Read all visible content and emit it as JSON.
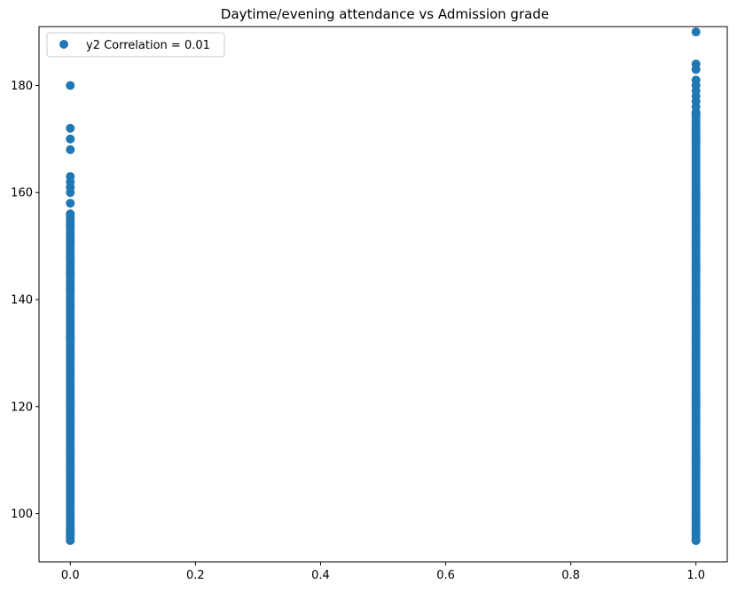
{
  "chart_data": {
    "type": "scatter",
    "title": "Daytime/evening attendance\t vs Admission grade",
    "xlabel": "",
    "ylabel": "",
    "xlim": [
      -0.05,
      1.05
    ],
    "ylim": [
      91,
      191
    ],
    "x_ticks": [
      0.0,
      0.2,
      0.4,
      0.6,
      0.8,
      1.0
    ],
    "x_tick_labels": [
      "0.0",
      "0.2",
      "0.4",
      "0.6",
      "0.8",
      "1.0"
    ],
    "y_ticks": [
      100,
      120,
      140,
      160,
      180
    ],
    "y_tick_labels": [
      "100",
      "120",
      "140",
      "160",
      "180"
    ],
    "grid": false,
    "legend_position": "top-left",
    "series": [
      {
        "name": "y2 Correlation = 0.01",
        "color": "#1f77b4",
        "groups": [
          {
            "x": 0,
            "dense_range": [
              95,
              156
            ],
            "y": [
              95,
              96,
              97,
              100,
              103,
              106,
              109,
              112,
              115,
              118,
              121,
              124,
              127,
              130,
              133,
              136,
              139,
              142,
              145,
              148,
              151,
              154,
              156,
              158,
              160,
              161,
              162,
              163,
              168,
              170,
              172,
              180
            ]
          },
          {
            "x": 1,
            "dense_range": [
              95,
              175
            ],
            "y": [
              95,
              100,
              110,
              120,
              130,
              140,
              150,
              160,
              170,
              175,
              176,
              177,
              178,
              179,
              180,
              181,
              183,
              184,
              190
            ]
          }
        ]
      }
    ]
  }
}
